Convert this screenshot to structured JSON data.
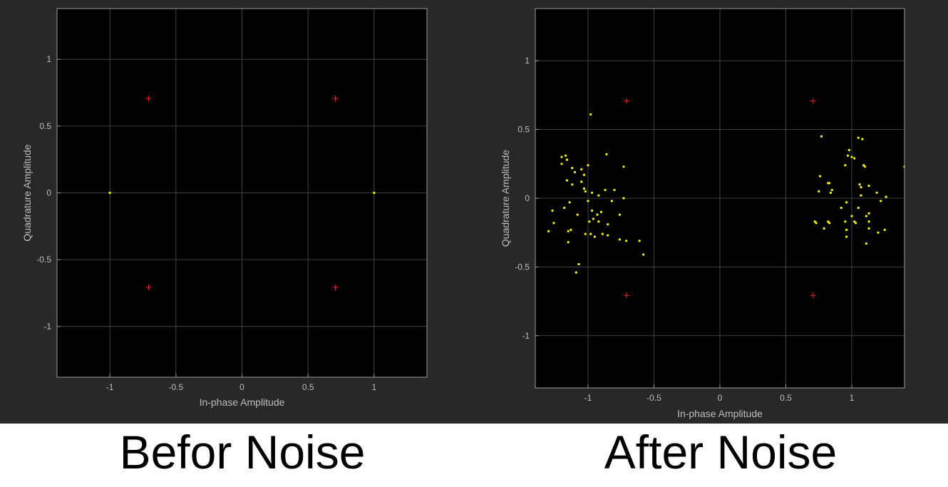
{
  "colors": {
    "figure_bg": "#282828",
    "axes_bg": "#000000",
    "grid": "#505050",
    "axis_text": "#bdbdbd",
    "reference_marker": "#ff2020",
    "signal_marker": "#ffff00"
  },
  "captions": {
    "left": "Befor Noise",
    "right": "After Noise"
  },
  "chart_data": [
    {
      "type": "scatter",
      "title": "",
      "xlabel": "In-phase Amplitude",
      "ylabel": "Quadrature Amplitude",
      "xlim": [
        -1.4,
        1.4
      ],
      "ylim": [
        -1.38,
        1.38
      ],
      "xticks": [
        -1,
        -0.5,
        0,
        0.5,
        1
      ],
      "yticks": [
        -1,
        -0.5,
        0,
        0.5,
        1
      ],
      "xticklabels": [
        "-1",
        "-0.5",
        "0",
        "0.5",
        "1"
      ],
      "yticklabels": [
        "-1",
        "-0.5",
        "0",
        "0.5",
        "1"
      ],
      "grid": true,
      "series": [
        {
          "marker": "plus",
          "color": "#ff2020",
          "points": [
            [
              -0.707,
              0.707
            ],
            [
              0.707,
              0.707
            ],
            [
              -0.707,
              -0.707
            ],
            [
              0.707,
              -0.707
            ]
          ]
        },
        {
          "marker": "dot",
          "color": "#ffff00",
          "points": [
            [
              -1,
              0
            ],
            [
              1,
              0
            ]
          ]
        }
      ]
    },
    {
      "type": "scatter",
      "title": "",
      "xlabel": "In-phase Amplitude",
      "ylabel": "Quadrature Amplitude",
      "xlim": [
        -1.4,
        1.4
      ],
      "ylim": [
        -1.38,
        1.38
      ],
      "xticks": [
        -1,
        -0.5,
        0,
        0.5,
        1
      ],
      "yticks": [
        -1,
        -0.5,
        0,
        0.5,
        1
      ],
      "xticklabels": [
        "-1",
        "-0.5",
        "0",
        "0.5",
        "1"
      ],
      "yticklabels": [
        "-1",
        "-0.5",
        "0",
        "0.5",
        "1"
      ],
      "grid": true,
      "series": [
        {
          "marker": "plus",
          "color": "#ff2020",
          "points": [
            [
              -0.707,
              0.707
            ],
            [
              0.707,
              0.707
            ],
            [
              -0.707,
              -0.707
            ],
            [
              0.707,
              -0.707
            ]
          ]
        },
        {
          "marker": "dot",
          "color": "#ffff00",
          "points": [
            [
              -0.98,
              0.61
            ],
            [
              -1.2,
              0.3
            ],
            [
              -1.17,
              0.31
            ],
            [
              -1.2,
              0.25
            ],
            [
              -1.16,
              0.28
            ],
            [
              -1.12,
              0.22
            ],
            [
              -1.1,
              0.19
            ],
            [
              -1.05,
              0.21
            ],
            [
              -1.0,
              0.24
            ],
            [
              -0.86,
              0.32
            ],
            [
              -0.73,
              0.23
            ],
            [
              -1.16,
              0.13
            ],
            [
              -1.12,
              0.1
            ],
            [
              -1.03,
              0.17
            ],
            [
              -1.05,
              0.12
            ],
            [
              -1.02,
              0.05
            ],
            [
              -1.03,
              0.07
            ],
            [
              -0.97,
              0.04
            ],
            [
              -0.92,
              0.02
            ],
            [
              -0.87,
              0.06
            ],
            [
              -0.8,
              0.06
            ],
            [
              -0.73,
              0.0
            ],
            [
              -1.14,
              -0.03
            ],
            [
              -1.18,
              -0.07
            ],
            [
              -1.27,
              -0.09
            ],
            [
              -1.0,
              -0.02
            ],
            [
              -0.97,
              -0.09
            ],
            [
              -0.93,
              -0.12
            ],
            [
              -0.9,
              -0.1
            ],
            [
              -0.96,
              -0.15
            ],
            [
              -0.99,
              -0.17
            ],
            [
              -0.92,
              -0.17
            ],
            [
              -0.85,
              -0.19
            ],
            [
              -0.82,
              -0.02
            ],
            [
              -0.76,
              -0.12
            ],
            [
              -1.26,
              -0.18
            ],
            [
              -1.15,
              -0.24
            ],
            [
              -1.13,
              -0.23
            ],
            [
              -1.3,
              -0.24
            ],
            [
              -1.02,
              -0.26
            ],
            [
              -0.98,
              -0.26
            ],
            [
              -0.95,
              -0.28
            ],
            [
              -0.89,
              -0.26
            ],
            [
              -0.85,
              -0.27
            ],
            [
              -0.76,
              -0.3
            ],
            [
              -0.71,
              -0.31
            ],
            [
              -0.61,
              -0.31
            ],
            [
              -0.58,
              -0.41
            ],
            [
              -1.15,
              -0.32
            ],
            [
              -1.07,
              -0.48
            ],
            [
              -1.09,
              -0.54
            ],
            [
              -1.08,
              -0.12
            ],
            [
              0.77,
              0.45
            ],
            [
              1.05,
              0.44
            ],
            [
              1.08,
              0.43
            ],
            [
              0.98,
              0.35
            ],
            [
              0.97,
              0.31
            ],
            [
              1.0,
              0.3
            ],
            [
              1.02,
              0.29
            ],
            [
              0.95,
              0.24
            ],
            [
              1.1,
              0.23
            ],
            [
              1.09,
              0.24
            ],
            [
              1.4,
              0.23
            ],
            [
              0.76,
              0.16
            ],
            [
              0.82,
              0.11
            ],
            [
              0.83,
              0.11
            ],
            [
              1.06,
              0.1
            ],
            [
              1.13,
              0.09
            ],
            [
              0.75,
              0.05
            ],
            [
              0.84,
              0.04
            ],
            [
              0.85,
              0.06
            ],
            [
              1.07,
              0.08
            ],
            [
              1.19,
              0.04
            ],
            [
              1.26,
              0.01
            ],
            [
              1.07,
              0.02
            ],
            [
              0.96,
              -0.03
            ],
            [
              1.22,
              -0.02
            ],
            [
              0.92,
              -0.07
            ],
            [
              1.05,
              -0.07
            ],
            [
              1.0,
              -0.13
            ],
            [
              1.11,
              -0.13
            ],
            [
              1.13,
              -0.11
            ],
            [
              0.72,
              -0.17
            ],
            [
              0.73,
              -0.18
            ],
            [
              0.83,
              -0.18
            ],
            [
              0.82,
              -0.17
            ],
            [
              0.95,
              -0.17
            ],
            [
              1.02,
              -0.17
            ],
            [
              1.03,
              -0.18
            ],
            [
              1.13,
              -0.17
            ],
            [
              0.79,
              -0.22
            ],
            [
              0.96,
              -0.23
            ],
            [
              1.13,
              -0.22
            ],
            [
              1.2,
              -0.25
            ],
            [
              1.25,
              -0.23
            ],
            [
              0.96,
              -0.28
            ],
            [
              1.11,
              -0.33
            ]
          ]
        }
      ]
    }
  ]
}
